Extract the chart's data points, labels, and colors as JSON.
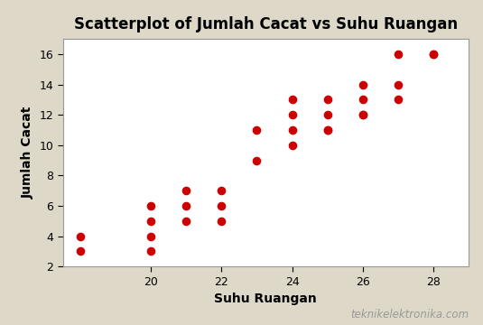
{
  "title": "Scatterplot of Jumlah Cacat vs Suhu Ruangan",
  "xlabel": "Suhu Ruangan",
  "ylabel": "Jumlah Cacat",
  "x": [
    18,
    18,
    20,
    20,
    20,
    20,
    21,
    21,
    21,
    22,
    22,
    22,
    23,
    23,
    24,
    24,
    24,
    24,
    25,
    25,
    25,
    25,
    26,
    26,
    26,
    26,
    27,
    27,
    27,
    28,
    28
  ],
  "y": [
    4,
    3,
    6,
    5,
    4,
    3,
    7,
    6,
    5,
    7,
    6,
    5,
    11,
    9,
    13,
    12,
    11,
    10,
    13,
    12,
    11,
    11,
    14,
    13,
    12,
    12,
    16,
    14,
    13,
    16,
    16
  ],
  "xlim": [
    17.5,
    29
  ],
  "ylim": [
    2,
    17
  ],
  "xticks": [
    20,
    22,
    24,
    26,
    28
  ],
  "yticks": [
    2,
    4,
    6,
    8,
    10,
    12,
    14,
    16
  ],
  "dot_color": "#cc0000",
  "dot_size": 35,
  "bg_outer": "#ddd8c8",
  "bg_inner": "#ffffff",
  "watermark": "teknikelektronika.com",
  "title_fontsize": 12,
  "label_fontsize": 10,
  "tick_fontsize": 9
}
